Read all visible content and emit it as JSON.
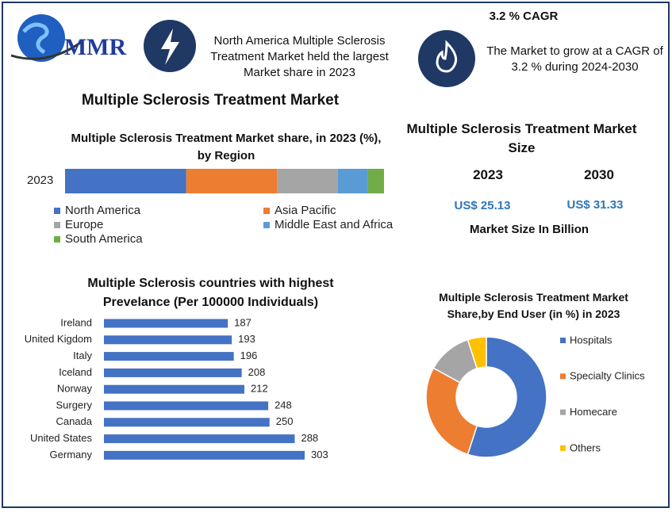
{
  "logo": "MMR",
  "highlight": "North America Multiple Sclerosis Treatment Market held the largest Market share in 2023",
  "cagr": {
    "title": "3.2 % CAGR",
    "text": "The Market to grow at a CAGR of 3.2 % during 2024-2030"
  },
  "heading": "Multiple Sclerosis Treatment Market",
  "market_size": {
    "title": "Multiple Sclerosis Treatment Market Size",
    "columns": [
      {
        "year": "2023",
        "value": "US$ 25.13"
      },
      {
        "year": "2030",
        "value": "US$ 31.33"
      }
    ],
    "note": "Market Size In Billion"
  },
  "chart_data": [
    {
      "type": "stacked_bar",
      "title": "Multiple Sclerosis Treatment  Market share, in 2023 (%), by Region",
      "categories": [
        "2023"
      ],
      "xlim": [
        0,
        100
      ],
      "series": [
        {
          "name": "North America",
          "color": "#4472c4",
          "values": [
            38
          ]
        },
        {
          "name": "Asia Pacific",
          "color": "#ed7d31",
          "values": [
            28.5
          ]
        },
        {
          "name": "Europe",
          "color": "#a5a5a5",
          "values": [
            19
          ]
        },
        {
          "name": "Middle East and Africa",
          "color": "#5b9bd5",
          "values": [
            9.5
          ]
        },
        {
          "name": "South America",
          "color": "#70ad47",
          "values": [
            5
          ]
        }
      ]
    },
    {
      "type": "hbar",
      "title": "Multiple Sclerosis  countries with highest Prevelance (Per 100000 Individuals)",
      "categories": [
        "Ireland",
        "United Kigdom",
        "Italy",
        "Iceland",
        "Norway",
        "Surgery",
        "Canada",
        "United States",
        "Germany"
      ],
      "values": [
        187,
        193,
        196,
        208,
        212,
        248,
        250,
        288,
        303
      ],
      "color": "#4472c4"
    },
    {
      "type": "donut",
      "title": "Multiple Sclerosis Treatment Market Share,by End User (in %) in 2023",
      "categories": [
        "Hospitals",
        "Specialty Clinics",
        "Homecare",
        "Others"
      ],
      "values": [
        55,
        28,
        12,
        5
      ],
      "colors": [
        "#4472c4",
        "#ed7d31",
        "#a5a5a5",
        "#ffc000"
      ]
    }
  ]
}
